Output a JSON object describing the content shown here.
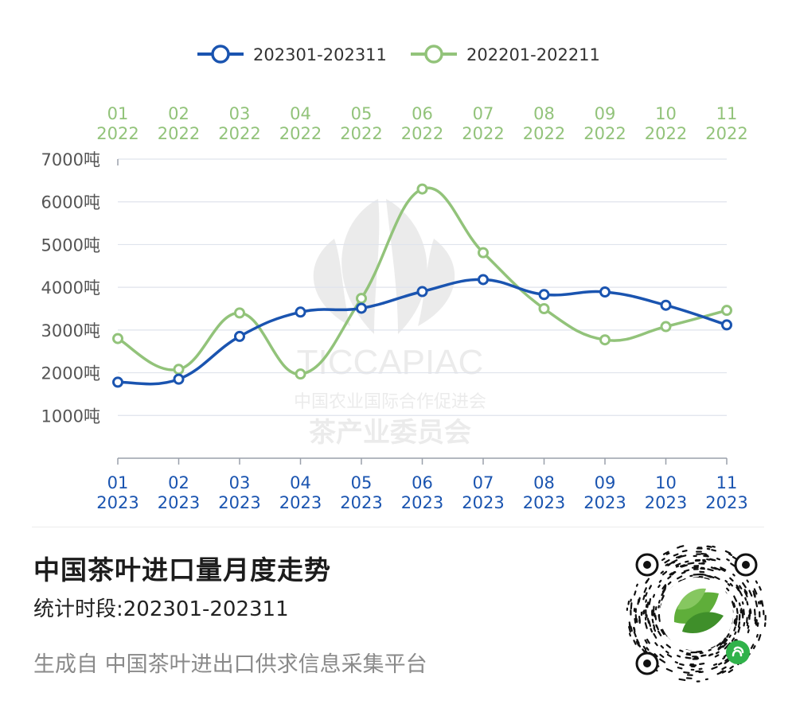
{
  "chart_data": {
    "type": "line",
    "legend_position": "top-center",
    "grid": true,
    "watermark": {
      "name": "TICCAPIAC",
      "line1": "中国农业国际合作促进会",
      "line2": "茶产业委员会"
    },
    "x_top_categories": [
      {
        "month": "01",
        "year": "2022"
      },
      {
        "month": "02",
        "year": "2022"
      },
      {
        "month": "03",
        "year": "2022"
      },
      {
        "month": "04",
        "year": "2022"
      },
      {
        "month": "05",
        "year": "2022"
      },
      {
        "month": "06",
        "year": "2022"
      },
      {
        "month": "07",
        "year": "2022"
      },
      {
        "month": "08",
        "year": "2022"
      },
      {
        "month": "09",
        "year": "2022"
      },
      {
        "month": "10",
        "year": "2022"
      },
      {
        "month": "11",
        "year": "2022"
      }
    ],
    "x_bottom_categories": [
      {
        "month": "01",
        "year": "2023"
      },
      {
        "month": "02",
        "year": "2023"
      },
      {
        "month": "03",
        "year": "2023"
      },
      {
        "month": "04",
        "year": "2023"
      },
      {
        "month": "05",
        "year": "2023"
      },
      {
        "month": "06",
        "year": "2023"
      },
      {
        "month": "07",
        "year": "2023"
      },
      {
        "month": "08",
        "year": "2023"
      },
      {
        "month": "09",
        "year": "2023"
      },
      {
        "month": "10",
        "year": "2023"
      },
      {
        "month": "11",
        "year": "2023"
      }
    ],
    "y_ticks": [
      "7000吨",
      "6000吨",
      "5000吨",
      "4000吨",
      "3000吨",
      "2000吨",
      "1000吨"
    ],
    "ylim": [
      0,
      7000
    ],
    "series": [
      {
        "name": "202301-202311",
        "color": "#1a54b0",
        "values": [
          1780,
          1850,
          2850,
          3420,
          3510,
          3900,
          4180,
          3830,
          3890,
          3580,
          3120
        ]
      },
      {
        "name": "202201-202211",
        "color": "#92c37a",
        "values": [
          2800,
          2080,
          3400,
          1970,
          3740,
          6300,
          4810,
          3500,
          2770,
          3080,
          3460
        ]
      }
    ]
  },
  "footer": {
    "title": "中国茶叶进口量月度走势",
    "period": "统计时段:202301-202311",
    "source": "生成自 中国茶叶进出口供求信息采集平台"
  },
  "qr_code": {
    "icon": "tea-leaf-logo-icon",
    "badge_icon": "mini-program-icon"
  }
}
